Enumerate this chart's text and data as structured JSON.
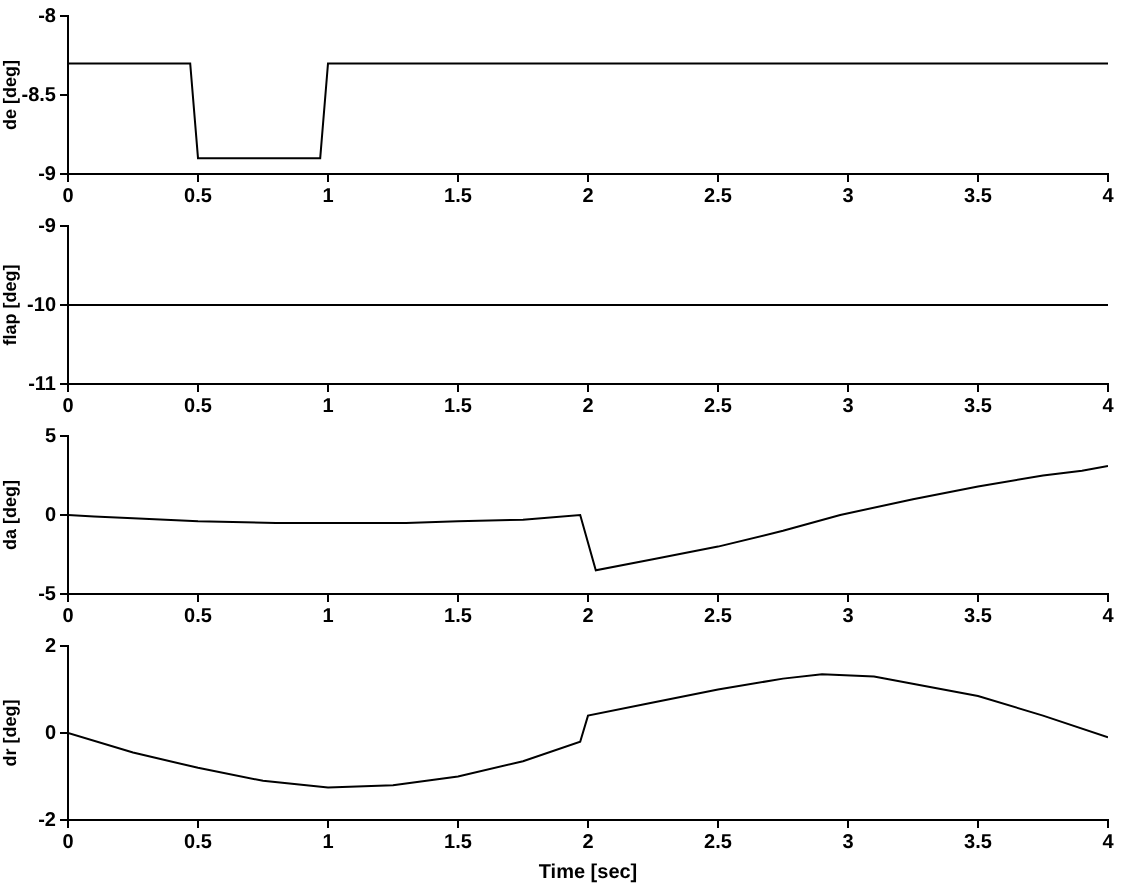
{
  "chart_data": [
    {
      "type": "line",
      "ylabel": "de [deg]",
      "x": [
        0,
        0.47,
        0.5,
        0.97,
        1.0,
        4
      ],
      "values": [
        -8.3,
        -8.3,
        -8.9,
        -8.9,
        -8.3,
        -8.3
      ],
      "color": "#000000",
      "xlim": [
        0,
        4
      ],
      "xticks": [
        0,
        0.5,
        1,
        1.5,
        2,
        2.5,
        3,
        3.5,
        4
      ],
      "ylim": [
        -9,
        -8
      ],
      "yticks": [
        -9,
        -8.5,
        -8
      ],
      "grid": false
    },
    {
      "type": "line",
      "ylabel": "flap [deg]",
      "x": [
        0,
        4
      ],
      "values": [
        -10,
        -10
      ],
      "color": "#000000",
      "xlim": [
        0,
        4
      ],
      "xticks": [
        0,
        0.5,
        1,
        1.5,
        2,
        2.5,
        3,
        3.5,
        4
      ],
      "ylim": [
        -11,
        -9
      ],
      "yticks": [
        -11,
        -10,
        -9
      ],
      "grid": false
    },
    {
      "type": "line",
      "ylabel": "da [deg]",
      "x": [
        0,
        0.1,
        0.25,
        0.5,
        0.8,
        1.0,
        1.3,
        1.5,
        1.75,
        1.97,
        2.03,
        2.25,
        2.5,
        2.75,
        2.97,
        3.25,
        3.5,
        3.75,
        3.9,
        4
      ],
      "values": [
        0,
        -0.1,
        -0.2,
        -0.4,
        -0.5,
        -0.5,
        -0.5,
        -0.4,
        -0.3,
        0,
        -3.5,
        -2.8,
        -2,
        -1,
        0,
        1,
        1.8,
        2.5,
        2.8,
        3.1
      ],
      "color": "#000000",
      "xlim": [
        0,
        4
      ],
      "xticks": [
        0,
        0.5,
        1,
        1.5,
        2,
        2.5,
        3,
        3.5,
        4
      ],
      "ylim": [
        -5,
        5
      ],
      "yticks": [
        -5,
        0,
        5
      ],
      "grid": false
    },
    {
      "type": "line",
      "xlabel": "Time [sec]",
      "ylabel": "dr [deg]",
      "x": [
        0,
        0.25,
        0.5,
        0.75,
        1.0,
        1.25,
        1.5,
        1.75,
        1.97,
        2.0,
        2.25,
        2.5,
        2.75,
        2.9,
        3.1,
        3.5,
        3.75,
        4
      ],
      "values": [
        0,
        -0.45,
        -0.8,
        -1.1,
        -1.25,
        -1.2,
        -1.0,
        -0.65,
        -0.2,
        0.4,
        0.7,
        1.0,
        1.25,
        1.35,
        1.3,
        0.85,
        0.4,
        -0.1
      ],
      "color": "#000000",
      "xlim": [
        0,
        4
      ],
      "xticks": [
        0,
        0.5,
        1,
        1.5,
        2,
        2.5,
        3,
        3.5,
        4
      ],
      "ylim": [
        -2,
        2
      ],
      "yticks": [
        -2,
        0,
        2
      ],
      "grid": false
    }
  ]
}
